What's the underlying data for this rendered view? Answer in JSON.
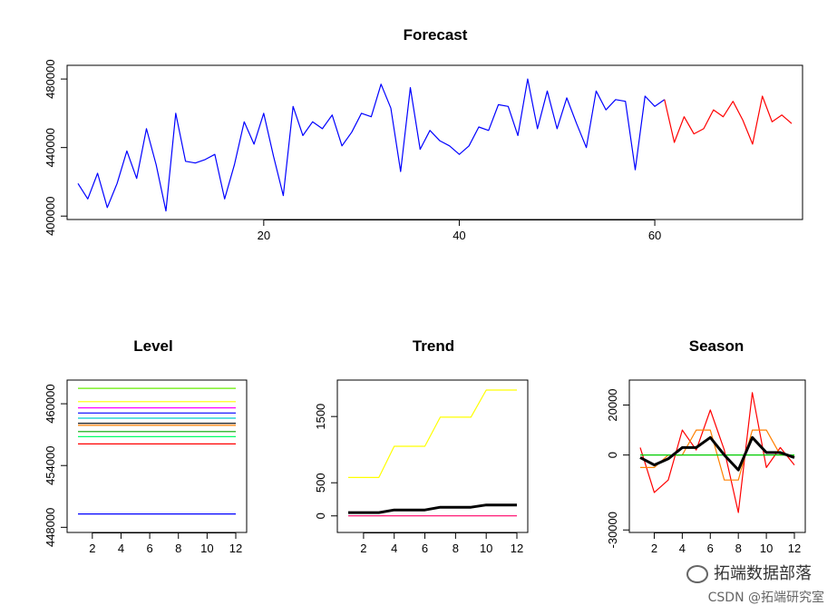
{
  "chart_data": [
    {
      "type": "line",
      "title": "Forecast",
      "xlim": [
        1,
        74
      ],
      "ylim": [
        398000,
        488000
      ],
      "x_ticks": [
        "20",
        "40",
        "60"
      ],
      "y_ticks": [
        "400000",
        "440000",
        "480000"
      ],
      "series": [
        {
          "color": "#0000ff",
          "x_start": 1,
          "values": [
            419000,
            410000,
            425000,
            405000,
            419000,
            438000,
            422000,
            451000,
            430000,
            403000,
            460000,
            432000,
            431000,
            433000,
            436000,
            410000,
            430000,
            455000,
            442000,
            460000,
            435000,
            412000,
            464000,
            447000,
            455000,
            451000,
            459000,
            441000,
            449000,
            460000,
            458000,
            477000,
            463000,
            426000,
            475000,
            439000,
            450000,
            444000,
            441000,
            436000,
            441000,
            452000,
            450000,
            465000,
            464000,
            447000,
            480000,
            451000,
            473000,
            451000,
            469000,
            454000,
            440000,
            473000,
            462000,
            468000,
            467000,
            427000,
            470000,
            464000,
            468000
          ]
        },
        {
          "color": "#ff0000",
          "x_start": 61,
          "values": [
            468000,
            443000,
            458000,
            448000,
            451000,
            462000,
            458000,
            467000,
            456000,
            442000,
            470000,
            455000,
            459000,
            454000
          ]
        }
      ]
    },
    {
      "type": "line",
      "title": "Level",
      "x": [
        1,
        2,
        3,
        4,
        5,
        6,
        7,
        8,
        9,
        10,
        11,
        12
      ],
      "xlim": [
        1,
        12
      ],
      "ylim": [
        447500,
        462300
      ],
      "x_ticks": [
        "2",
        "4",
        "6",
        "8",
        "10",
        "12"
      ],
      "y_ticks": [
        "448000",
        "454000",
        "460000"
      ],
      "series": [
        {
          "color": "#66ee00",
          "value": 461500
        },
        {
          "color": "#ffff00",
          "value": 460200
        },
        {
          "color": "#ff00ff",
          "value": 459600
        },
        {
          "color": "#0000ff",
          "value": 459100
        },
        {
          "color": "#00cccc",
          "value": 458600
        },
        {
          "color": "#000000",
          "value": 458100
        },
        {
          "color": "#ff8000",
          "value": 457900
        },
        {
          "color": "#00aa00",
          "value": 457300
        },
        {
          "color": "#00ff66",
          "value": 456800
        },
        {
          "color": "#ff0000",
          "value": 456100
        },
        {
          "color": "#0000ff",
          "value": 449300
        }
      ]
    },
    {
      "type": "line",
      "title": "Trend",
      "x": [
        1,
        2,
        3,
        4,
        5,
        6,
        7,
        8,
        9,
        10,
        11,
        12
      ],
      "xlim": [
        1,
        12
      ],
      "ylim": [
        -250,
        2050
      ],
      "x_ticks": [
        "2",
        "4",
        "6",
        "8",
        "10",
        "12"
      ],
      "y_ticks": [
        "0",
        "500",
        "1500"
      ],
      "series": [
        {
          "color": "#ffff00",
          "values": [
            580,
            580,
            580,
            1050,
            1050,
            1050,
            1490,
            1490,
            1490,
            1900,
            1900,
            1900
          ]
        },
        {
          "color": "#000000",
          "values": [
            50,
            50,
            50,
            90,
            90,
            90,
            130,
            130,
            130,
            165,
            165,
            165
          ]
        },
        {
          "color": "#ff0066",
          "values": [
            0,
            0,
            0,
            0,
            0,
            0,
            0,
            0,
            0,
            0,
            0,
            0
          ]
        }
      ]
    },
    {
      "type": "line",
      "title": "Season",
      "x": [
        1,
        2,
        3,
        4,
        5,
        6,
        7,
        8,
        9,
        10,
        11,
        12
      ],
      "xlim": [
        1,
        12
      ],
      "ylim": [
        -31000,
        30000
      ],
      "x_ticks": [
        "2",
        "4",
        "6",
        "8",
        "10",
        "12"
      ],
      "y_ticks": [
        "-30000",
        "0",
        "20000"
      ],
      "series": [
        {
          "color": "#ff0000",
          "values": [
            3000,
            -15000,
            -10000,
            10000,
            2000,
            18000,
            2000,
            -23000,
            25000,
            -5000,
            3000,
            -4000
          ]
        },
        {
          "color": "#ff8000",
          "values": [
            -5000,
            -5000,
            0,
            0,
            10000,
            10000,
            -10000,
            -10000,
            10000,
            10000,
            0,
            0
          ]
        },
        {
          "color": "#00cc00",
          "values": [
            0,
            0,
            0,
            0,
            0,
            0,
            0,
            0,
            0,
            0,
            0,
            0
          ]
        },
        {
          "color": "#000000",
          "values": [
            -1000,
            -4000,
            -1500,
            3000,
            3000,
            7000,
            0,
            -6000,
            7000,
            1000,
            1000,
            -1000
          ]
        }
      ]
    }
  ],
  "watermark": {
    "line1": "拓端数据部落",
    "line2": "CSDN @拓端研究室"
  }
}
